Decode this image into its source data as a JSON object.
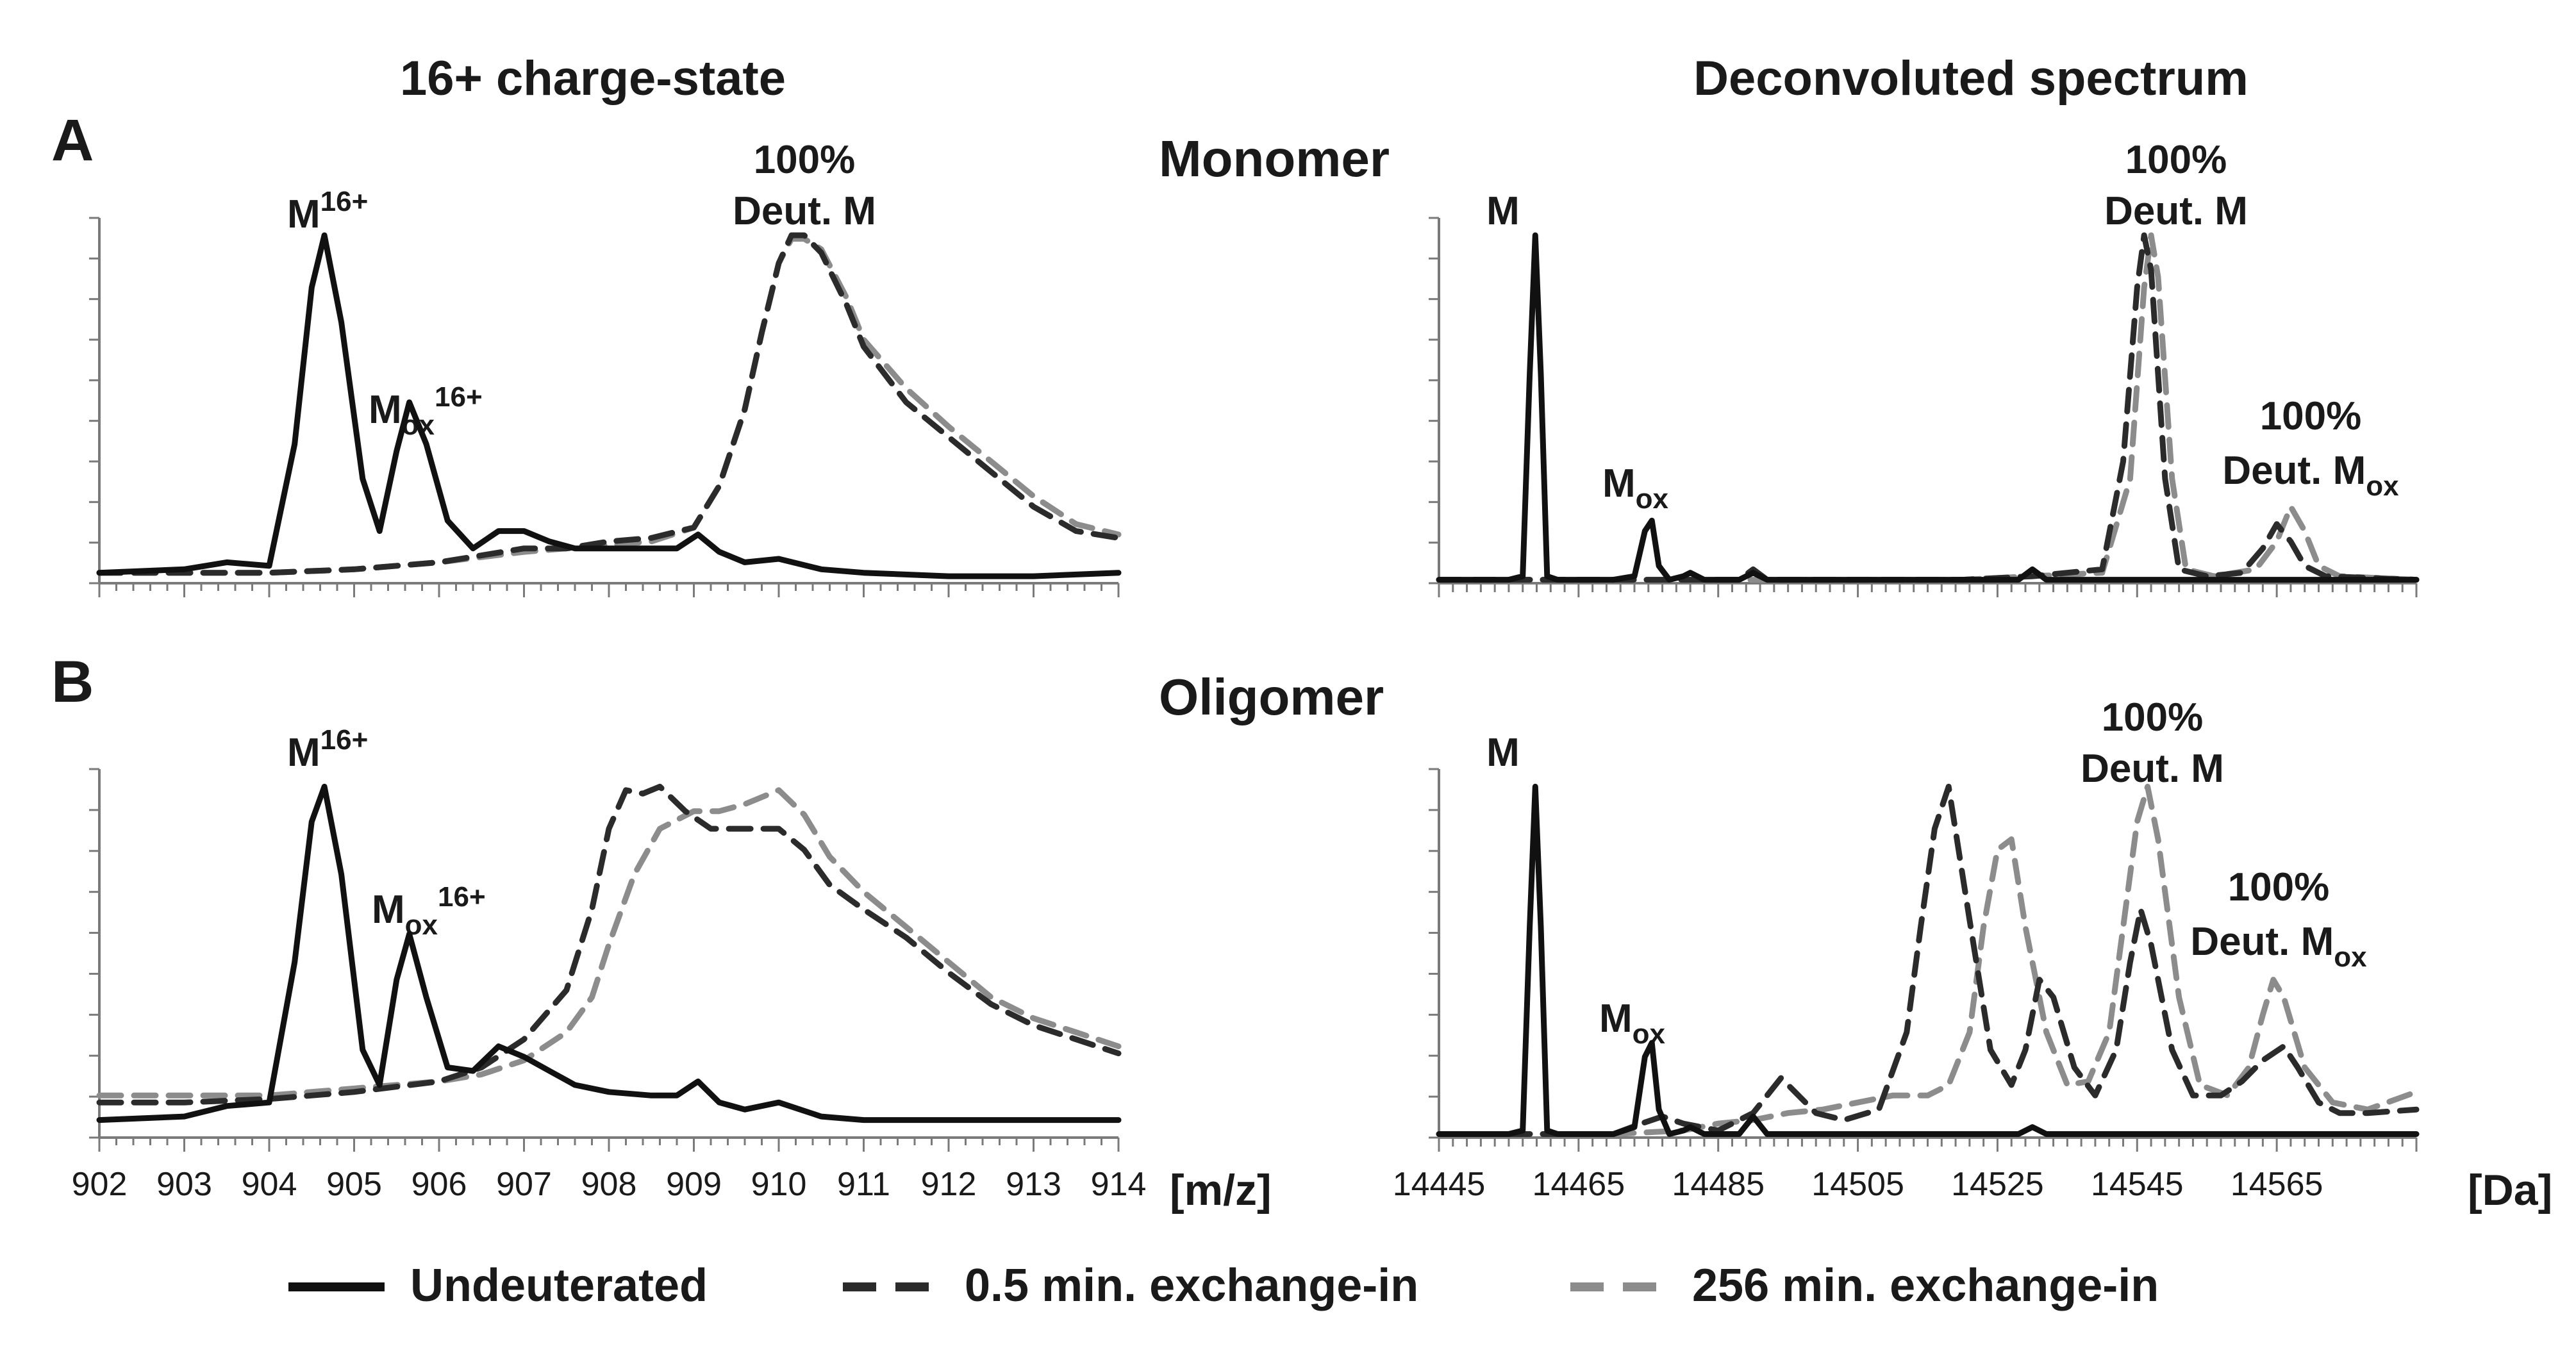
{
  "titles": {
    "left": "16+ charge-state",
    "right": "Deconvoluted spectrum"
  },
  "panel_letters": {
    "a": "A",
    "b": "B"
  },
  "row_labels": {
    "monomer": "Monomer",
    "oligomer": "Oligomer"
  },
  "units": {
    "mz": "[m/z]",
    "da": "[Da]"
  },
  "colors": {
    "undeuterated": "#111111",
    "exchange_05": "#2b2b2b",
    "exchange_256": "#8c8c8c",
    "axis": "#7a7a7a"
  },
  "legend": [
    {
      "key": "undeuterated",
      "label": "Undeuterated",
      "style": "solid"
    },
    {
      "key": "exchange_05",
      "label": "0.5 min. exchange-in",
      "style": "dashed"
    },
    {
      "key": "exchange_256",
      "label": "256 min. exchange-in",
      "style": "dashed"
    }
  ],
  "annotations": {
    "m16": {
      "base": "M",
      "sup": "16+"
    },
    "mox16": {
      "base": "M",
      "sub": "ox",
      "sup": "16+"
    },
    "deut_pct": "100%",
    "deut_m": "Deut. M",
    "deut_mox_base": "Deut. M",
    "deut_mox_sub": "ox",
    "m": "M",
    "mox_base": "M",
    "mox_sub": "ox"
  },
  "chart_data": [
    {
      "id": "A-left",
      "type": "line",
      "title": "16+ charge-state",
      "panel": "A",
      "xlabel": "[m/z]",
      "ylabel": "",
      "xlim": [
        902,
        914
      ],
      "ylim": [
        0,
        1.05
      ],
      "xticks": [
        902,
        903,
        904,
        905,
        906,
        907,
        908,
        909,
        910,
        911,
        912,
        913,
        914
      ],
      "series": [
        {
          "name": "Undeuterated",
          "key": "undeuterated",
          "x": [
            902,
            903,
            903.5,
            904,
            904.3,
            904.5,
            904.65,
            904.85,
            905.1,
            905.3,
            905.5,
            905.65,
            905.85,
            906.1,
            906.4,
            906.7,
            907,
            907.3,
            907.6,
            908,
            908.5,
            908.8,
            909.05,
            909.3,
            909.6,
            910,
            910.5,
            911,
            912,
            913,
            914
          ],
          "y": [
            0.03,
            0.04,
            0.06,
            0.05,
            0.4,
            0.85,
            1.0,
            0.75,
            0.3,
            0.15,
            0.38,
            0.52,
            0.4,
            0.18,
            0.1,
            0.15,
            0.15,
            0.12,
            0.1,
            0.1,
            0.1,
            0.1,
            0.14,
            0.09,
            0.06,
            0.07,
            0.04,
            0.03,
            0.02,
            0.02,
            0.03
          ]
        },
        {
          "name": "0.5 min. exchange-in",
          "key": "exchange_05",
          "x": [
            902,
            903,
            904,
            905,
            906,
            907,
            907.5,
            908,
            908.5,
            909,
            909.3,
            909.6,
            909.8,
            910,
            910.15,
            910.3,
            910.5,
            910.8,
            911,
            911.5,
            912,
            912.5,
            913,
            913.5,
            914
          ],
          "y": [
            0.03,
            0.03,
            0.03,
            0.04,
            0.06,
            0.1,
            0.1,
            0.12,
            0.13,
            0.16,
            0.28,
            0.5,
            0.72,
            0.92,
            1.0,
            1.0,
            0.95,
            0.8,
            0.68,
            0.52,
            0.42,
            0.32,
            0.22,
            0.15,
            0.13
          ]
        },
        {
          "name": "256 min. exchange-in",
          "key": "exchange_256",
          "x": [
            902,
            903,
            904,
            905,
            906,
            907,
            907.5,
            908,
            908.5,
            909,
            909.3,
            909.6,
            909.8,
            910,
            910.15,
            910.3,
            910.5,
            910.8,
            911,
            911.5,
            912,
            912.5,
            913,
            913.5,
            914
          ],
          "y": [
            0.03,
            0.03,
            0.03,
            0.04,
            0.06,
            0.09,
            0.1,
            0.11,
            0.12,
            0.16,
            0.28,
            0.5,
            0.72,
            0.92,
            0.99,
            0.99,
            0.96,
            0.82,
            0.7,
            0.56,
            0.45,
            0.35,
            0.25,
            0.17,
            0.14
          ]
        }
      ]
    },
    {
      "id": "A-right",
      "type": "line",
      "title": "Deconvoluted spectrum",
      "panel": "Monomer",
      "xlabel": "[Da]",
      "ylabel": "",
      "xlim": [
        14445,
        14585
      ],
      "ylim": [
        0,
        1.05
      ],
      "xticks": [],
      "series": [
        {
          "name": "Undeuterated",
          "key": "undeuterated",
          "x": [
            14445,
            14455,
            14457,
            14458,
            14458.8,
            14459.6,
            14460.5,
            14462,
            14470,
            14473,
            14474.5,
            14475.5,
            14476.5,
            14478,
            14480,
            14481,
            14483,
            14488,
            14490,
            14492,
            14500,
            14528,
            14530,
            14532,
            14545,
            14560,
            14585
          ],
          "y": [
            0.01,
            0.01,
            0.02,
            0.6,
            1.0,
            0.6,
            0.02,
            0.01,
            0.01,
            0.02,
            0.15,
            0.18,
            0.05,
            0.01,
            0.02,
            0.03,
            0.01,
            0.01,
            0.03,
            0.01,
            0.01,
            0.01,
            0.04,
            0.01,
            0.01,
            0.01,
            0.01
          ]
        },
        {
          "name": "0.5 min. exchange-in",
          "key": "exchange_05",
          "x": [
            14445,
            14480,
            14488,
            14490,
            14492,
            14520,
            14530,
            14540,
            14543,
            14545,
            14546,
            14547,
            14549,
            14551,
            14555,
            14560,
            14563,
            14565,
            14567,
            14569,
            14572,
            14585
          ],
          "y": [
            0.01,
            0.01,
            0.01,
            0.04,
            0.01,
            0.01,
            0.02,
            0.04,
            0.35,
            0.85,
            1.0,
            0.9,
            0.3,
            0.04,
            0.02,
            0.03,
            0.1,
            0.17,
            0.12,
            0.05,
            0.02,
            0.01
          ]
        },
        {
          "name": "256 min. exchange-in",
          "key": "exchange_256",
          "x": [
            14445,
            14480,
            14500,
            14520,
            14530,
            14540,
            14544,
            14546,
            14547,
            14548,
            14550,
            14552,
            14556,
            14562,
            14565,
            14567,
            14569,
            14571,
            14574,
            14585
          ],
          "y": [
            0.01,
            0.01,
            0.01,
            0.01,
            0.02,
            0.03,
            0.3,
            0.85,
            1.0,
            0.88,
            0.3,
            0.04,
            0.02,
            0.04,
            0.12,
            0.22,
            0.15,
            0.05,
            0.02,
            0.01
          ]
        }
      ]
    },
    {
      "id": "B-left",
      "type": "line",
      "title": "",
      "panel": "B",
      "xlabel": "[m/z]",
      "ylabel": "",
      "xlim": [
        902,
        914
      ],
      "ylim": [
        0,
        1.05
      ],
      "xticks": [
        902,
        903,
        904,
        905,
        906,
        907,
        908,
        909,
        910,
        911,
        912,
        913,
        914
      ],
      "series": [
        {
          "name": "Undeuterated",
          "key": "undeuterated",
          "x": [
            902,
            903,
            903.5,
            904,
            904.3,
            904.5,
            904.65,
            904.85,
            905.1,
            905.3,
            905.5,
            905.65,
            905.85,
            906.1,
            906.4,
            906.7,
            907,
            907.3,
            907.6,
            908,
            908.5,
            908.8,
            909.05,
            909.3,
            909.6,
            910,
            910.5,
            911,
            912,
            913,
            914
          ],
          "y": [
            0.05,
            0.06,
            0.09,
            0.1,
            0.5,
            0.9,
            1.0,
            0.75,
            0.25,
            0.15,
            0.45,
            0.58,
            0.4,
            0.2,
            0.19,
            0.26,
            0.23,
            0.19,
            0.15,
            0.13,
            0.12,
            0.12,
            0.16,
            0.1,
            0.08,
            0.1,
            0.06,
            0.05,
            0.05,
            0.05,
            0.05
          ]
        },
        {
          "name": "0.5 min. exchange-in",
          "key": "exchange_05",
          "x": [
            902,
            903,
            904,
            905,
            906,
            906.5,
            907,
            907.5,
            907.8,
            908,
            908.2,
            908.4,
            908.6,
            908.9,
            909.2,
            909.6,
            910,
            910.3,
            910.6,
            911,
            911.5,
            912,
            912.5,
            913,
            913.5,
            914
          ],
          "y": [
            0.1,
            0.1,
            0.11,
            0.13,
            0.16,
            0.2,
            0.28,
            0.42,
            0.65,
            0.88,
            0.99,
            0.98,
            1.0,
            0.93,
            0.88,
            0.88,
            0.88,
            0.82,
            0.72,
            0.65,
            0.57,
            0.47,
            0.38,
            0.32,
            0.28,
            0.24
          ]
        },
        {
          "name": "256 min. exchange-in",
          "key": "exchange_256",
          "x": [
            902,
            903,
            904,
            905,
            906,
            906.5,
            907,
            907.5,
            907.8,
            908,
            908.3,
            908.6,
            909,
            909.3,
            909.6,
            910,
            910.3,
            910.6,
            911,
            911.5,
            912,
            912.5,
            913,
            913.5,
            914
          ],
          "y": [
            0.12,
            0.12,
            0.12,
            0.14,
            0.16,
            0.18,
            0.22,
            0.3,
            0.4,
            0.55,
            0.75,
            0.88,
            0.93,
            0.93,
            0.95,
            0.99,
            0.92,
            0.8,
            0.7,
            0.6,
            0.5,
            0.4,
            0.34,
            0.3,
            0.26
          ]
        }
      ]
    },
    {
      "id": "B-right",
      "type": "line",
      "title": "",
      "panel": "Oligomer",
      "xlabel": "[Da]",
      "ylabel": "",
      "xlim": [
        14445,
        14585
      ],
      "ylim": [
        0,
        1.05
      ],
      "xticks": [
        14445,
        14465,
        14485,
        14505,
        14525,
        14545,
        14565
      ],
      "series": [
        {
          "name": "Undeuterated",
          "key": "undeuterated",
          "x": [
            14445,
            14455,
            14457,
            14458,
            14458.8,
            14459.6,
            14460.5,
            14462,
            14470,
            14473,
            14474.5,
            14475.5,
            14476.5,
            14478,
            14480,
            14481,
            14483,
            14488,
            14490,
            14492,
            14500,
            14528,
            14530,
            14532,
            14545,
            14560,
            14585
          ],
          "y": [
            0.01,
            0.01,
            0.02,
            0.6,
            1.0,
            0.6,
            0.02,
            0.01,
            0.01,
            0.03,
            0.23,
            0.27,
            0.08,
            0.01,
            0.02,
            0.03,
            0.01,
            0.01,
            0.06,
            0.01,
            0.01,
            0.01,
            0.03,
            0.01,
            0.01,
            0.01,
            0.01
          ]
        },
        {
          "name": "0.5 min. exchange-in",
          "key": "exchange_05",
          "x": [
            14445,
            14470,
            14474,
            14477,
            14480,
            14485,
            14490,
            14494,
            14496,
            14499,
            14503,
            14508,
            14512,
            14514,
            14516,
            14518,
            14521,
            14524,
            14527,
            14529,
            14531,
            14533,
            14536,
            14539,
            14542,
            14544,
            14545.5,
            14547,
            14550,
            14553,
            14557,
            14560,
            14563,
            14566,
            14568,
            14571,
            14574,
            14578,
            14585
          ],
          "y": [
            0.01,
            0.01,
            0.04,
            0.06,
            0.04,
            0.02,
            0.07,
            0.17,
            0.13,
            0.07,
            0.05,
            0.08,
            0.3,
            0.6,
            0.88,
            1.0,
            0.62,
            0.25,
            0.15,
            0.25,
            0.45,
            0.4,
            0.2,
            0.12,
            0.25,
            0.5,
            0.65,
            0.55,
            0.25,
            0.12,
            0.12,
            0.16,
            0.22,
            0.26,
            0.2,
            0.1,
            0.07,
            0.07,
            0.08
          ]
        },
        {
          "name": "256 min. exchange-in",
          "key": "exchange_256",
          "x": [
            14445,
            14470,
            14480,
            14485,
            14490,
            14495,
            14500,
            14505,
            14510,
            14515,
            14518,
            14521,
            14523,
            14525,
            14527,
            14529,
            14532,
            14535,
            14538,
            14541,
            14543,
            14545,
            14546.5,
            14548,
            14551,
            14554,
            14558,
            14561,
            14563,
            14564.5,
            14566,
            14569,
            14573,
            14578,
            14585
          ],
          "y": [
            0.01,
            0.01,
            0.02,
            0.04,
            0.05,
            0.07,
            0.08,
            0.1,
            0.12,
            0.12,
            0.15,
            0.3,
            0.6,
            0.82,
            0.85,
            0.6,
            0.3,
            0.15,
            0.16,
            0.3,
            0.6,
            0.9,
            1.0,
            0.85,
            0.4,
            0.15,
            0.12,
            0.2,
            0.35,
            0.45,
            0.4,
            0.2,
            0.1,
            0.08,
            0.13
          ]
        }
      ]
    }
  ]
}
